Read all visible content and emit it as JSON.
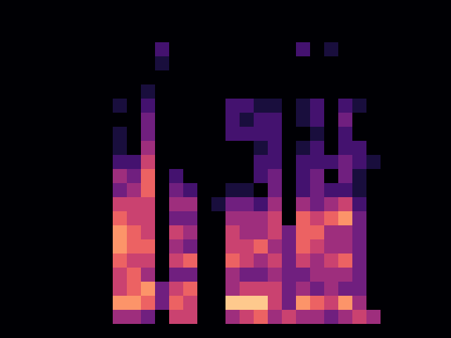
{
  "chart_data": {
    "type": "heatmap",
    "xlim": [
      0,
      32
    ],
    "ylim": [
      0,
      24
    ],
    "tick_labels": false,
    "color_range": [
      0,
      9
    ],
    "cells": [
      [
        0,
        0,
        0,
        0,
        0,
        0,
        0,
        0,
        0,
        0,
        0,
        0,
        0,
        0,
        0,
        0,
        0,
        0,
        0,
        0,
        0,
        0,
        0,
        0,
        0,
        0,
        0,
        0,
        0,
        0,
        0,
        0
      ],
      [
        0,
        0,
        0,
        0,
        0,
        0,
        0,
        0,
        0,
        0,
        0,
        0,
        0,
        0,
        0,
        0,
        0,
        0,
        0,
        0,
        0,
        0,
        0,
        0,
        0,
        0,
        0,
        0,
        0,
        0,
        0,
        0
      ],
      [
        0,
        0,
        0,
        0,
        0,
        0,
        0,
        0,
        0,
        0,
        0,
        0,
        0,
        0,
        0,
        0,
        0,
        0,
        0,
        0,
        0,
        0,
        0,
        0,
        0,
        0,
        0,
        0,
        0,
        0,
        0,
        0
      ],
      [
        0,
        0,
        0,
        0,
        0,
        0,
        0,
        0,
        0,
        0,
        0,
        2,
        0,
        0,
        0,
        0,
        0,
        0,
        0,
        0,
        0,
        2,
        0,
        1,
        0,
        0,
        0,
        0,
        0,
        0,
        0,
        0
      ],
      [
        0,
        0,
        0,
        0,
        0,
        0,
        0,
        0,
        0,
        0,
        0,
        1,
        0,
        0,
        0,
        0,
        0,
        0,
        0,
        0,
        0,
        0,
        0,
        0,
        0,
        0,
        0,
        0,
        0,
        0,
        0,
        0
      ],
      [
        0,
        0,
        0,
        0,
        0,
        0,
        0,
        0,
        0,
        0,
        0,
        0,
        0,
        0,
        0,
        0,
        0,
        0,
        0,
        0,
        0,
        0,
        0,
        0,
        0,
        0,
        0,
        0,
        0,
        0,
        0,
        0
      ],
      [
        0,
        0,
        0,
        0,
        0,
        0,
        0,
        0,
        0,
        0,
        1,
        0,
        0,
        0,
        0,
        0,
        0,
        0,
        0,
        0,
        0,
        0,
        0,
        0,
        0,
        0,
        0,
        0,
        0,
        0,
        0,
        0
      ],
      [
        0,
        0,
        0,
        0,
        0,
        0,
        0,
        0,
        1,
        0,
        2,
        0,
        0,
        0,
        0,
        0,
        2,
        2,
        1,
        1,
        0,
        1,
        2,
        0,
        2,
        1,
        0,
        0,
        0,
        0,
        0,
        0
      ],
      [
        0,
        0,
        0,
        0,
        0,
        0,
        0,
        0,
        0,
        0,
        3,
        0,
        0,
        0,
        0,
        0,
        2,
        1,
        2,
        2,
        0,
        1,
        2,
        0,
        3,
        0,
        0,
        0,
        0,
        0,
        0,
        0
      ],
      [
        0,
        0,
        0,
        0,
        0,
        0,
        0,
        0,
        1,
        0,
        3,
        0,
        0,
        0,
        0,
        0,
        2,
        2,
        2,
        2,
        0,
        0,
        1,
        0,
        2,
        0,
        0,
        0,
        0,
        0,
        0,
        0
      ],
      [
        0,
        0,
        0,
        0,
        0,
        0,
        0,
        0,
        1,
        0,
        4,
        0,
        0,
        0,
        0,
        0,
        0,
        0,
        1,
        2,
        0,
        1,
        2,
        0,
        2,
        2,
        0,
        0,
        0,
        0,
        0,
        0
      ],
      [
        0,
        0,
        0,
        0,
        0,
        0,
        0,
        0,
        2,
        2,
        5,
        0,
        0,
        0,
        0,
        0,
        0,
        0,
        2,
        2,
        0,
        2,
        2,
        2,
        3,
        2,
        1,
        0,
        0,
        0,
        0,
        0
      ],
      [
        0,
        0,
        0,
        0,
        0,
        0,
        0,
        0,
        4,
        3,
        6,
        0,
        2,
        0,
        0,
        0,
        0,
        0,
        2,
        3,
        0,
        2,
        3,
        0,
        3,
        1,
        0,
        0,
        0,
        0,
        0,
        0
      ],
      [
        0,
        0,
        0,
        0,
        0,
        0,
        0,
        0,
        3,
        4,
        6,
        0,
        3,
        2,
        0,
        0,
        1,
        1,
        0,
        3,
        0,
        2,
        3,
        2,
        2,
        1,
        0,
        0,
        0,
        0,
        0,
        0
      ],
      [
        0,
        0,
        0,
        0,
        0,
        0,
        0,
        0,
        5,
        5,
        5,
        0,
        4,
        4,
        0,
        1,
        3,
        3,
        2,
        4,
        0,
        4,
        3,
        4,
        5,
        2,
        0,
        0,
        0,
        0,
        0,
        0
      ],
      [
        0,
        0,
        0,
        0,
        0,
        0,
        0,
        0,
        6,
        5,
        5,
        0,
        3,
        3,
        0,
        0,
        4,
        4,
        4,
        5,
        0,
        6,
        5,
        6,
        7,
        3,
        0,
        0,
        0,
        0,
        0,
        0
      ],
      [
        0,
        0,
        0,
        0,
        0,
        0,
        0,
        0,
        7,
        6,
        5,
        0,
        5,
        4,
        0,
        0,
        5,
        4,
        4,
        5,
        3,
        6,
        6,
        4,
        4,
        3,
        0,
        0,
        0,
        0,
        0,
        0
      ],
      [
        0,
        0,
        0,
        0,
        0,
        0,
        0,
        0,
        7,
        6,
        6,
        0,
        4,
        3,
        0,
        0,
        5,
        5,
        6,
        4,
        3,
        6,
        5,
        4,
        4,
        3,
        0,
        0,
        0,
        0,
        0,
        0
      ],
      [
        0,
        0,
        0,
        0,
        0,
        0,
        0,
        0,
        6,
        5,
        5,
        0,
        5,
        6,
        0,
        0,
        6,
        5,
        4,
        5,
        3,
        5,
        4,
        5,
        6,
        3,
        0,
        0,
        0,
        0,
        0,
        0
      ],
      [
        0,
        0,
        0,
        0,
        0,
        0,
        0,
        0,
        5,
        6,
        4,
        0,
        3,
        3,
        0,
        0,
        4,
        3,
        3,
        4,
        3,
        3,
        4,
        4,
        4,
        3,
        0,
        0,
        0,
        0,
        0,
        0
      ],
      [
        0,
        0,
        0,
        0,
        0,
        0,
        0,
        0,
        5,
        6,
        7,
        3,
        5,
        6,
        0,
        0,
        4,
        5,
        5,
        5,
        3,
        4,
        3,
        4,
        3,
        3,
        0,
        0,
        0,
        0,
        0,
        0
      ],
      [
        0,
        0,
        0,
        0,
        0,
        0,
        0,
        0,
        7,
        7,
        6,
        3,
        6,
        5,
        0,
        0,
        8,
        8,
        8,
        5,
        3,
        7,
        6,
        5,
        7,
        4,
        0,
        0,
        0,
        0,
        0,
        0
      ],
      [
        0,
        0,
        0,
        0,
        0,
        0,
        0,
        0,
        4,
        4,
        3,
        0,
        5,
        5,
        0,
        0,
        4,
        5,
        6,
        4,
        5,
        4,
        4,
        3,
        4,
        5,
        4,
        0,
        0,
        0,
        0,
        0
      ],
      [
        0,
        0,
        0,
        0,
        0,
        0,
        0,
        0,
        0,
        0,
        0,
        0,
        0,
        0,
        0,
        0,
        0,
        0,
        0,
        0,
        0,
        0,
        0,
        0,
        0,
        0,
        0,
        0,
        0,
        0,
        0,
        0
      ]
    ]
  }
}
